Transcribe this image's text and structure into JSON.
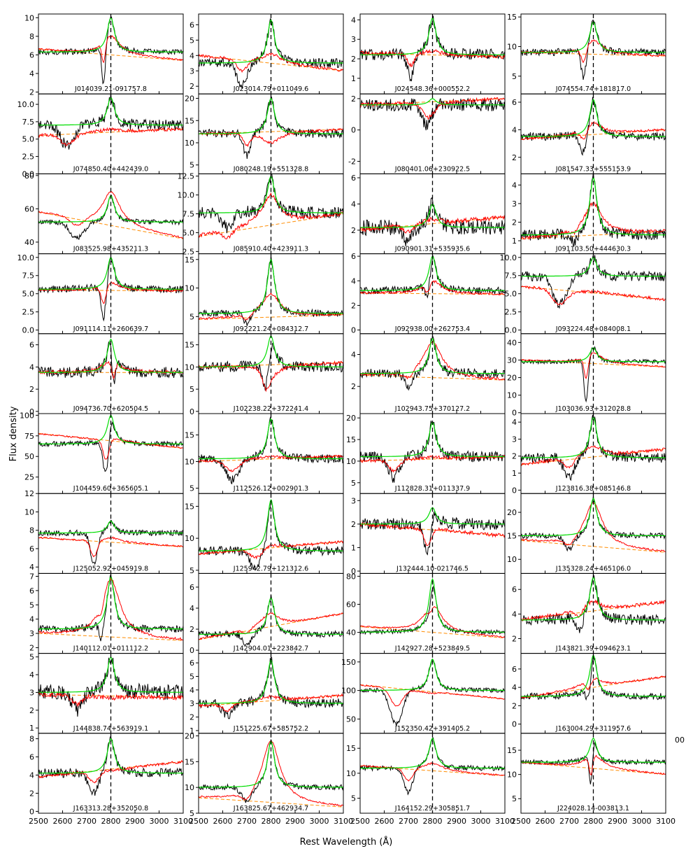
{
  "figure": {
    "xlabel": "Rest Wavelength (Å)",
    "ylabel": "Flux density",
    "overlap_note": "00",
    "colors": {
      "observed": "#000000",
      "model": "#00dd00",
      "composite": "#ff0000",
      "continuum": "#ff8c00",
      "marker": "#000000"
    },
    "line_center": 2800,
    "xlim": [
      2500,
      3100
    ],
    "x_ticks": [
      2500,
      2600,
      2700,
      2800,
      2900,
      3000,
      3100
    ]
  },
  "chart_data": [
    {
      "type": "line",
      "label": "J014039.21-091757.8",
      "ylim": [
        1.8,
        10.4
      ],
      "yticks": [
        2,
        4,
        6,
        8,
        10
      ],
      "cont": [
        6.6,
        5.4
      ],
      "base": 6.3,
      "peak": 10,
      "comp_peak": 8,
      "abs": [
        {
          "c": 2770,
          "w": 10,
          "d": 4.5
        }
      ],
      "noise": 0.3
    },
    {
      "type": "line",
      "label": "J023014.79+011049.6",
      "ylim": [
        1.5,
        6.7
      ],
      "yticks": [
        2,
        3,
        4,
        5,
        6
      ],
      "cont": [
        4,
        3
      ],
      "base": 3.5,
      "peak": 6.3,
      "comp_peak": 4.1,
      "abs": [
        {
          "c": 2680,
          "w": 30,
          "d": 1.5
        }
      ],
      "noise": 0.3
    },
    {
      "type": "line",
      "label": "J024548.36+000552.2",
      "ylim": [
        0.2,
        4.3
      ],
      "yticks": [
        1,
        2,
        3,
        4
      ],
      "cont": [
        2.3,
        2.1
      ],
      "base": 2.2,
      "peak": 4.1,
      "comp_peak": 2.4,
      "abs": [
        {
          "c": 2710,
          "w": 20,
          "d": 1.2
        }
      ],
      "noise": 0.3
    },
    {
      "type": "line",
      "label": "J074554.74+181817.0",
      "ylim": [
        2,
        15.5
      ],
      "yticks": [
        5,
        10,
        15
      ],
      "cont": [
        9,
        8.4
      ],
      "base": 9,
      "peak": 14.2,
      "comp_peak": 11,
      "abs": [
        {
          "c": 2760,
          "w": 15,
          "d": 5
        }
      ],
      "noise": 0.6
    },
    {
      "type": "line",
      "label": "J074850.40+442439.0",
      "ylim": [
        0,
        11.5
      ],
      "yticks": [
        0.0,
        2.5,
        5.0,
        7.5,
        10.0
      ],
      "cont": [
        5.5,
        6.5
      ],
      "base": 7,
      "peak": 11,
      "comp_peak": 6.5,
      "abs": [
        {
          "c": 2620,
          "w": 40,
          "d": 3
        }
      ],
      "noise": 0.8
    },
    {
      "type": "line",
      "label": "J080248.19+551328.8",
      "ylim": [
        3,
        21
      ],
      "yticks": [
        5,
        10,
        15,
        20
      ],
      "cont": [
        12,
        13
      ],
      "base": 12,
      "peak": 20,
      "comp_peak": 10,
      "abs": [
        {
          "c": 2700,
          "w": 20,
          "d": 5
        }
      ],
      "noise": 1
    },
    {
      "type": "line",
      "label": "J080401.06+230922.5",
      "ylim": [
        -2.8,
        2.3
      ],
      "yticks": [
        -2,
        0,
        2
      ],
      "cont": [
        1.6,
        2
      ],
      "base": 1.6,
      "peak": 2,
      "comp_peak": 1.5,
      "abs": [
        {
          "c": 2780,
          "w": 30,
          "d": 1.5
        }
      ],
      "noise": 0.4
    },
    {
      "type": "line",
      "label": "J081547.33+555153.9",
      "ylim": [
        0.8,
        6.6
      ],
      "yticks": [
        2,
        4,
        6
      ],
      "cont": [
        3.3,
        4
      ],
      "base": 3.5,
      "peak": 6.2,
      "comp_peak": 4.5,
      "abs": [
        {
          "c": 2760,
          "w": 20,
          "d": 1.5
        }
      ],
      "noise": 0.3
    },
    {
      "type": "line",
      "label": "J083525.98+435211.3",
      "ylim": [
        33,
        81
      ],
      "yticks": [
        40,
        60,
        80
      ],
      "cont": [
        58,
        42
      ],
      "base": 52,
      "peak": 68,
      "comp_peak": 70,
      "abs": [
        {
          "c": 2660,
          "w": 40,
          "d": 10
        }
      ],
      "noise": 1.5
    },
    {
      "type": "line",
      "label": "J085910.40+423911.3",
      "ylim": [
        2.2,
        12.8
      ],
      "yticks": [
        2.5,
        5.0,
        7.5,
        10.0,
        12.5
      ],
      "cont": [
        4.5,
        7.5
      ],
      "base": 7.6,
      "peak": 12.5,
      "comp_peak": 10,
      "abs": [
        {
          "c": 2620,
          "w": 30,
          "d": 2
        }
      ],
      "noise": 0.8
    },
    {
      "type": "line",
      "label": "J090901.31+535935.6",
      "ylim": [
        0.2,
        6.3
      ],
      "yticks": [
        2,
        4,
        6
      ],
      "cont": [
        2,
        3
      ],
      "base": 2.2,
      "peak": 4,
      "comp_peak": 2.8,
      "abs": [
        {
          "c": 2700,
          "w": 30,
          "d": 1
        }
      ],
      "noise": 0.6
    },
    {
      "type": "line",
      "label": "J091103.50+444630.3",
      "ylim": [
        0.3,
        4.6
      ],
      "yticks": [
        1,
        2,
        3,
        4
      ],
      "cont": [
        1.1,
        1.5
      ],
      "base": 1.3,
      "peak": 4.4,
      "comp_peak": 3,
      "abs": [
        {
          "c": 2720,
          "w": 20,
          "d": 0.5
        }
      ],
      "noise": 0.3
    },
    {
      "type": "line",
      "label": "J091114.11+260639.7",
      "ylim": [
        -0.5,
        10.5
      ],
      "yticks": [
        0.0,
        2.5,
        5.0,
        7.5,
        10.0
      ],
      "cont": [
        5.5,
        5.4
      ],
      "base": 5.6,
      "peak": 10,
      "comp_peak": 6.5,
      "abs": [
        {
          "c": 2770,
          "w": 15,
          "d": 5
        }
      ],
      "noise": 0.5
    },
    {
      "type": "line",
      "label": "J092221.24+084312.7",
      "ylim": [
        2,
        16
      ],
      "yticks": [
        5,
        10,
        15
      ],
      "cont": [
        4.5,
        5.3
      ],
      "base": 5.5,
      "peak": 15,
      "comp_peak": 9,
      "abs": [
        {
          "c": 2700,
          "w": 20,
          "d": 2
        }
      ],
      "noise": 0.6
    },
    {
      "type": "line",
      "label": "J092938.00+262753.4",
      "ylim": [
        -0.3,
        6.2
      ],
      "yticks": [
        0,
        2,
        4,
        6
      ],
      "cont": [
        3,
        2.9
      ],
      "base": 3.2,
      "peak": 6,
      "comp_peak": 4,
      "abs": [
        {
          "c": 2780,
          "w": 15,
          "d": 1.5
        }
      ],
      "noise": 0.3
    },
    {
      "type": "line",
      "label": "J093224.48+084008.1",
      "ylim": [
        -0.5,
        10.5
      ],
      "yticks": [
        0.0,
        2.5,
        5.0,
        7.5,
        10.0
      ],
      "cont": [
        6,
        4.2
      ],
      "base": 7.4,
      "peak": 10,
      "comp_peak": 5.3,
      "abs": [
        {
          "c": 2660,
          "w": 40,
          "d": 4
        }
      ],
      "noise": 0.7
    },
    {
      "type": "line",
      "label": "J094736.70+620504.5",
      "ylim": [
        -0.2,
        7
      ],
      "yticks": [
        0,
        2,
        4,
        6
      ],
      "cont": [
        3.5,
        3.5
      ],
      "base": 3.5,
      "peak": 6.5,
      "comp_peak": 4.5,
      "abs": [
        {
          "c": 2810,
          "w": 10,
          "d": 3
        }
      ],
      "noise": 0.5
    },
    {
      "type": "line",
      "label": "J102238.22+372241.4",
      "ylim": [
        -0.5,
        17.5
      ],
      "yticks": [
        0,
        5,
        10,
        15
      ],
      "cont": [
        10,
        11
      ],
      "base": 10,
      "peak": 17,
      "comp_peak": 8,
      "abs": [
        {
          "c": 2780,
          "w": 20,
          "d": 7
        }
      ],
      "noise": 1.2
    },
    {
      "type": "line",
      "label": "J102943.75+370127.2",
      "ylim": [
        0.3,
        5.3
      ],
      "yticks": [
        2,
        4
      ],
      "cont": [
        2.7,
        2.4
      ],
      "base": 2.8,
      "peak": 5,
      "comp_peak": 4.8,
      "abs": [
        {
          "c": 2700,
          "w": 25,
          "d": 0.8
        }
      ],
      "noise": 0.3
    },
    {
      "type": "line",
      "label": "J103036.93+312028.8",
      "ylim": [
        -0.5,
        45
      ],
      "yticks": [
        0,
        10,
        20,
        30,
        40
      ],
      "cont": [
        30,
        26
      ],
      "base": 29,
      "peak": 37,
      "comp_peak": 34,
      "abs": [
        {
          "c": 2770,
          "w": 12,
          "d": 25
        }
      ],
      "noise": 1.2
    },
    {
      "type": "line",
      "label": "J104459.60+365605.1",
      "ylim": [
        5,
        102
      ],
      "yticks": [
        25,
        50,
        75,
        100
      ],
      "cont": [
        78,
        60
      ],
      "base": 65,
      "peak": 100,
      "comp_peak": 72,
      "abs": [
        {
          "c": 2780,
          "w": 18,
          "d": 50
        }
      ],
      "noise": 3
    },
    {
      "type": "line",
      "label": "J112526.12+002901.3",
      "ylim": [
        4,
        19
      ],
      "yticks": [
        5,
        10,
        15
      ],
      "cont": [
        10,
        11
      ],
      "base": 10.5,
      "peak": 18,
      "comp_peak": 11,
      "abs": [
        {
          "c": 2640,
          "w": 40,
          "d": 4
        }
      ],
      "noise": 0.8
    },
    {
      "type": "line",
      "label": "J112828.31+011337.9",
      "ylim": [
        2.5,
        21
      ],
      "yticks": [
        5,
        10,
        15,
        20
      ],
      "cont": [
        10,
        11
      ],
      "base": 11,
      "peak": 19,
      "comp_peak": 11,
      "abs": [
        {
          "c": 2640,
          "w": 30,
          "d": 5
        }
      ],
      "noise": 1.2
    },
    {
      "type": "line",
      "label": "J123816.38+085146.8",
      "ylim": [
        -0.2,
        4.5
      ],
      "yticks": [
        0,
        1,
        2,
        3,
        4
      ],
      "cont": [
        1.5,
        2.4
      ],
      "base": 1.9,
      "peak": 4.3,
      "comp_peak": 2.6,
      "abs": [
        {
          "c": 2700,
          "w": 30,
          "d": 1.2
        }
      ],
      "noise": 0.3
    },
    {
      "type": "line",
      "label": "J125052.92+045919.8",
      "ylim": [
        3.3,
        12
      ],
      "yticks": [
        4,
        6,
        8,
        10,
        12
      ],
      "cont": [
        7.2,
        6.2
      ],
      "base": 7.7,
      "peak": 9,
      "comp_peak": 7.2,
      "abs": [
        {
          "c": 2730,
          "w": 20,
          "d": 3.5
        }
      ],
      "noise": 0.3
    },
    {
      "type": "line",
      "label": "J125942.79+121312.6",
      "ylim": [
        4.5,
        17
      ],
      "yticks": [
        5,
        10,
        15
      ],
      "cont": [
        7.5,
        9.5
      ],
      "base": 8,
      "peak": 16,
      "comp_peak": 9,
      "abs": [
        {
          "c": 2740,
          "w": 40,
          "d": 3
        }
      ],
      "noise": 0.7
    },
    {
      "type": "line",
      "label": "J132444.10-021746.5",
      "ylim": [
        -0.1,
        3.3
      ],
      "yticks": [
        0,
        1,
        2,
        3
      ],
      "cont": [
        2,
        1.5
      ],
      "base": 2,
      "peak": 2.7,
      "comp_peak": 1.8,
      "abs": [
        {
          "c": 2780,
          "w": 20,
          "d": 1.5
        }
      ],
      "noise": 0.25
    },
    {
      "type": "line",
      "label": "J135328.24+465106.0",
      "ylim": [
        7,
        24
      ],
      "yticks": [
        10,
        15,
        20
      ],
      "cont": [
        14,
        11.5
      ],
      "base": 15,
      "peak": 23,
      "comp_peak": 22,
      "abs": [
        {
          "c": 2700,
          "w": 30,
          "d": 3
        }
      ],
      "noise": 0.6
    },
    {
      "type": "line",
      "label": "J140112.01+011112.2",
      "ylim": [
        1.6,
        7.2
      ],
      "yticks": [
        2,
        3,
        4,
        5,
        6,
        7
      ],
      "cont": [
        3,
        2.5
      ],
      "base": 3.3,
      "peak": 7,
      "comp_peak": 6.8,
      "abs": [
        {
          "c": 2760,
          "w": 12,
          "d": 1.3
        }
      ],
      "noise": 0.25
    },
    {
      "type": "line",
      "label": "J142904.01+223842.7",
      "ylim": [
        -0.3,
        7.3
      ],
      "yticks": [
        0,
        2,
        4,
        6
      ],
      "cont": [
        1,
        3.5
      ],
      "base": 1.5,
      "peak": 5,
      "comp_peak": 3.5,
      "abs": [
        {
          "c": 2700,
          "w": 25,
          "d": 1
        }
      ],
      "noise": 0.3
    },
    {
      "type": "line",
      "label": "J142927.28+523849.5",
      "ylim": [
        25,
        82
      ],
      "yticks": [
        40,
        60,
        80
      ],
      "cont": [
        44,
        36
      ],
      "base": 40,
      "peak": 78,
      "comp_peak": 60,
      "abs": [
        {
          "c": 2790,
          "w": 15,
          "d": 10
        }
      ],
      "noise": 1.5
    },
    {
      "type": "line",
      "label": "J143821.39+094623.1",
      "ylim": [
        0.8,
        7.3
      ],
      "yticks": [
        2,
        4,
        6
      ],
      "cont": [
        3.5,
        5
      ],
      "base": 3.5,
      "peak": 7,
      "comp_peak": 5,
      "abs": [
        {
          "c": 2740,
          "w": 20,
          "d": 1.2
        }
      ],
      "noise": 0.45
    },
    {
      "type": "line",
      "label": "J144838.74+563919.1",
      "ylim": [
        0.7,
        5.2
      ],
      "yticks": [
        1,
        2,
        3,
        4,
        5
      ],
      "cont": [
        2.9,
        2.7
      ],
      "base": 3,
      "peak": 5,
      "comp_peak": 2.7,
      "abs": [
        {
          "c": 2660,
          "w": 30,
          "d": 1
        }
      ],
      "noise": 0.45
    },
    {
      "type": "line",
      "label": "J151225.67+585752.2",
      "ylim": [
        0.8,
        6.7
      ],
      "yticks": [
        1,
        2,
        3,
        4,
        5,
        6
      ],
      "cont": [
        2.8,
        3.6
      ],
      "base": 3,
      "peak": 6.2,
      "comp_peak": 3.5,
      "abs": [
        {
          "c": 2620,
          "w": 30,
          "d": 1
        }
      ],
      "noise": 0.35
    },
    {
      "type": "line",
      "label": "J152350.42+391405.2",
      "ylim": [
        25,
        165
      ],
      "yticks": [
        50,
        100,
        150
      ],
      "cont": [
        110,
        85
      ],
      "base": 100,
      "peak": 155,
      "comp_peak": 95,
      "abs": [
        {
          "c": 2650,
          "w": 35,
          "d": 60
        }
      ],
      "noise": 4
    },
    {
      "type": "line",
      "label": "J163004.29+311957.6",
      "ylim": [
        -1,
        7.7
      ],
      "yticks": [
        0,
        2,
        4,
        6
      ],
      "cont": [
        2.8,
        5.2
      ],
      "base": 3,
      "peak": 7.5,
      "comp_peak": 5,
      "abs": [
        {
          "c": 2780,
          "w": 15,
          "d": 2
        }
      ],
      "noise": 0.35
    },
    {
      "type": "line",
      "label": "J163313.28+352050.8",
      "ylim": [
        -0.2,
        8.6
      ],
      "yticks": [
        0,
        2,
        4,
        6,
        8
      ],
      "cont": [
        3.8,
        5.5
      ],
      "base": 4.2,
      "peak": 8,
      "comp_peak": 4.5,
      "abs": [
        {
          "c": 2730,
          "w": 30,
          "d": 2.5
        }
      ],
      "noise": 0.5
    },
    {
      "type": "line",
      "label": "J163825.67+462934.7",
      "ylim": [
        5,
        20.5
      ],
      "yticks": [
        5,
        10,
        15,
        20
      ],
      "cont": [
        8,
        6.2
      ],
      "base": 10,
      "peak": 19,
      "comp_peak": 19,
      "abs": [
        {
          "c": 2700,
          "w": 30,
          "d": 3
        }
      ],
      "noise": 0.5
    },
    {
      "type": "line",
      "label": "J164152.29+305851.7",
      "ylim": [
        2,
        18
      ],
      "yticks": [
        5,
        10,
        15
      ],
      "cont": [
        11.5,
        9.5
      ],
      "base": 11,
      "peak": 17,
      "comp_peak": 12,
      "abs": [
        {
          "c": 2700,
          "w": 25,
          "d": 5
        }
      ],
      "noise": 0.5
    },
    {
      "type": "line",
      "label": "J224028.14-003813.1",
      "ylim": [
        2,
        18.5
      ],
      "yticks": [
        5,
        10,
        15
      ],
      "cont": [
        12.5,
        10
      ],
      "base": 12.5,
      "peak": 17.5,
      "comp_peak": 14,
      "abs": [
        {
          "c": 2790,
          "w": 10,
          "d": 8
        }
      ],
      "noise": 0.5
    }
  ]
}
